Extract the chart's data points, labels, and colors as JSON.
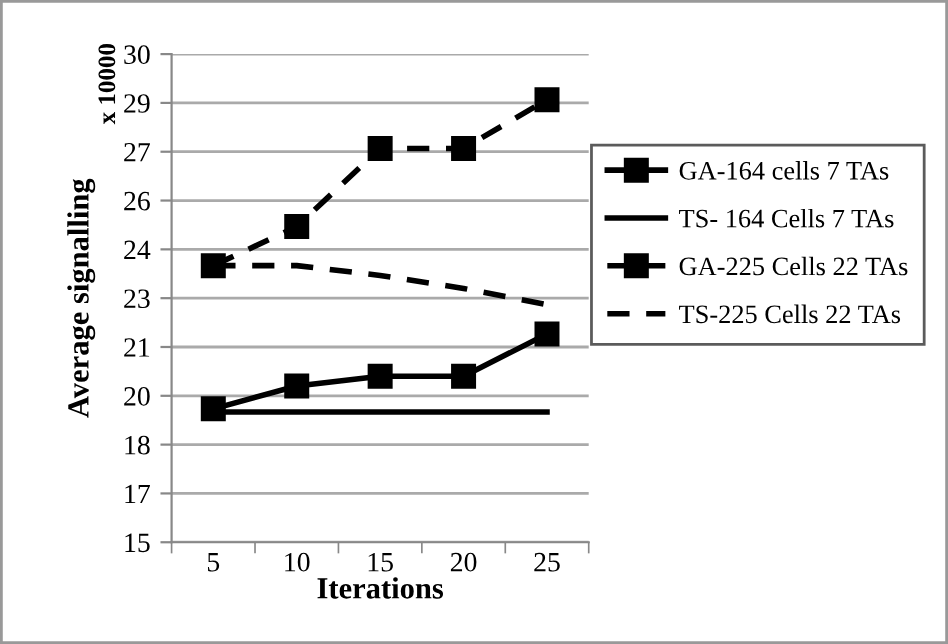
{
  "chart_data": {
    "type": "line",
    "xlabel": "Iterations",
    "ylabel": "Average signalling",
    "annotations": [
      "x 10000"
    ],
    "categories": [
      "5",
      "10",
      "15",
      "20",
      "25"
    ],
    "ylim": [
      15,
      30
    ],
    "yticks": [
      15,
      {
        "value": 16.5,
        "label": "17"
      },
      18,
      {
        "value": 19.5,
        "label": "20"
      },
      21,
      {
        "value": 22.5,
        "label": "23"
      },
      24,
      {
        "value": 25.5,
        "label": "26"
      },
      27,
      {
        "value": 28.5,
        "label": "29"
      },
      30
    ],
    "grid": "y",
    "legend": "right",
    "series": [
      {
        "name": "GA-164 cells 7 TAs",
        "color": "#000000",
        "marker": "square",
        "line_style": "solid",
        "values": [
          19.1,
          19.8,
          20.1,
          20.1,
          21.4
        ]
      },
      {
        "name": "TS- 164 Cells 7 TAs",
        "color": "#000000",
        "marker": "none",
        "line_style": "solid",
        "values": [
          19.0,
          19.0,
          19.0,
          19.0,
          19.0
        ]
      },
      {
        "name": "GA-225 Cells 22 TAs",
        "color": "#000000",
        "marker": "square",
        "line_style": "dashed",
        "values": [
          23.5,
          24.7,
          27.1,
          27.1,
          28.6
        ]
      },
      {
        "name": "TS-225 Cells 22 TAs",
        "color": "#000000",
        "marker": "none",
        "line_style": "dashed",
        "values": [
          23.5,
          23.5,
          23.2,
          22.8,
          22.3
        ]
      }
    ]
  }
}
